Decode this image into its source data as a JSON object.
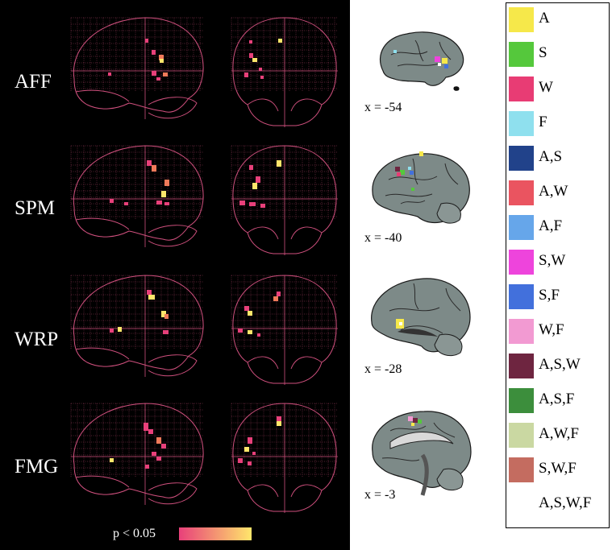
{
  "figure": {
    "rows": [
      {
        "label": "AFF"
      },
      {
        "label": "SPM"
      },
      {
        "label": "WRP"
      },
      {
        "label": "FMG"
      }
    ],
    "slices": [
      {
        "label": "x = -54"
      },
      {
        "label": "x = -40"
      },
      {
        "label": "x = -28"
      },
      {
        "label": "x = -3"
      }
    ],
    "colorbar": {
      "label": "p < 0.05",
      "colors": [
        "#e8407a",
        "#ffe66b"
      ]
    },
    "legend": [
      {
        "label": "A",
        "color": "#f6e84a"
      },
      {
        "label": "S",
        "color": "#55c83c"
      },
      {
        "label": "W",
        "color": "#e83c74"
      },
      {
        "label": "F",
        "color": "#8fe0ee"
      },
      {
        "label": "A,S",
        "color": "#21428a"
      },
      {
        "label": "A,W",
        "color": "#ea5460"
      },
      {
        "label": "A,F",
        "color": "#66a6ea"
      },
      {
        "label": "S,W",
        "color": "#ee44dc"
      },
      {
        "label": "S,F",
        "color": "#4270dc"
      },
      {
        "label": "W,F",
        "color": "#f29ad2"
      },
      {
        "label": "A,S,W",
        "color": "#6e2540"
      },
      {
        "label": "A,S,F",
        "color": "#3c8e3c"
      },
      {
        "label": "A,W,F",
        "color": "#cad8a2"
      },
      {
        "label": "S,W,F",
        "color": "#c46c60"
      },
      {
        "label": "A,S,W,F",
        "color": "#ffffff"
      }
    ]
  }
}
